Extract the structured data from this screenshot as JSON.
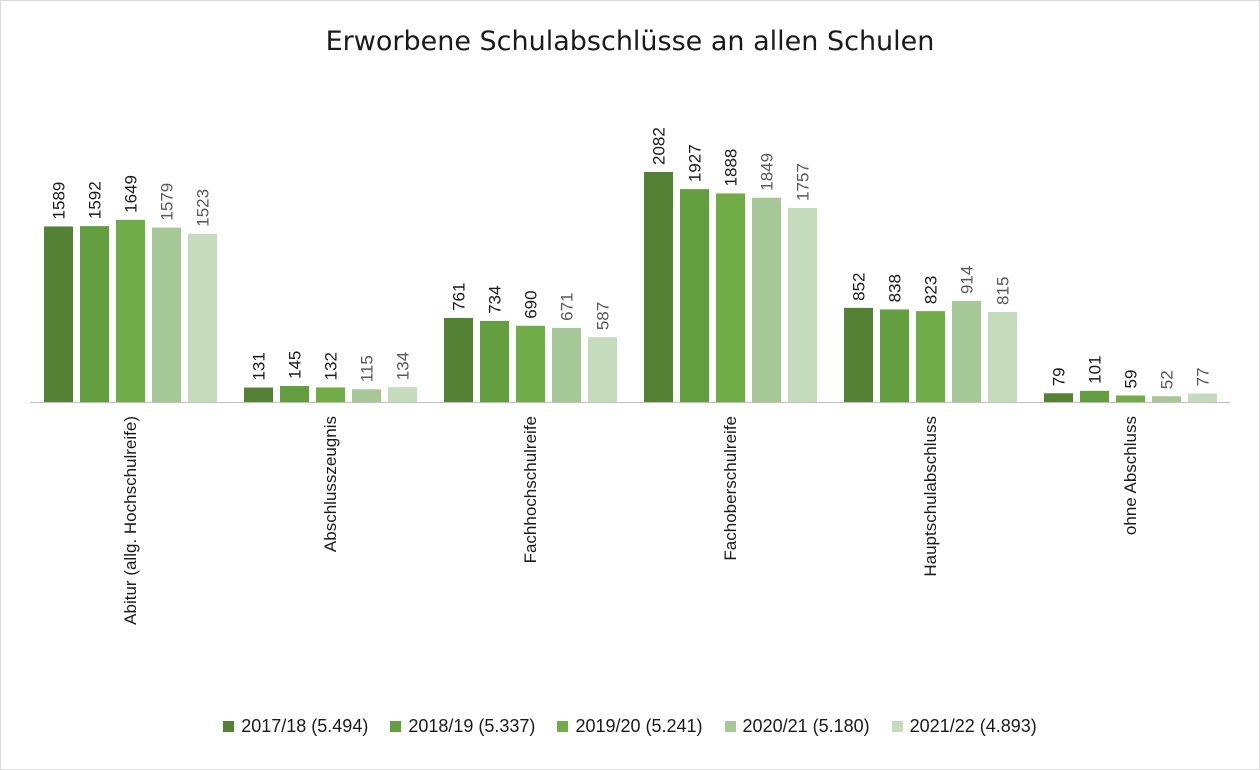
{
  "chart_data": {
    "type": "bar",
    "title": "Erworbene Schulabschlüsse an allen Schulen",
    "xlabel": "",
    "ylabel": "",
    "ylim": [
      0,
      2250
    ],
    "grid": false,
    "legend_position": "bottom",
    "categories": [
      "Abitur (allg. Hochschulreife)",
      "Abschlusszeugnis",
      "Fachhochschulreife",
      "Fachoberschulreife",
      "Hauptschulabschluss",
      "ohne Abschluss"
    ],
    "series": [
      {
        "name": "2017/18 (5.494)",
        "color": "#548235",
        "label_color": "#1a1a1a",
        "values": [
          1589,
          131,
          761,
          2082,
          852,
          79
        ]
      },
      {
        "name": "2018/19 (5.337)",
        "color": "#639e3f",
        "label_color": "#1a1a1a",
        "values": [
          1592,
          145,
          734,
          1927,
          838,
          101
        ]
      },
      {
        "name": "2019/20 (5.241)",
        "color": "#70ad47",
        "label_color": "#1a1a1a",
        "values": [
          1649,
          132,
          690,
          1888,
          823,
          59
        ]
      },
      {
        "name": "2020/21 (5.180)",
        "color": "#a6c796",
        "label_color": "#595959",
        "values": [
          1579,
          115,
          671,
          1849,
          914,
          52
        ]
      },
      {
        "name": "2021/22 (4.893)",
        "color": "#c5dcbc",
        "label_color": "#595959",
        "values": [
          1523,
          134,
          587,
          1757,
          815,
          77
        ]
      }
    ]
  }
}
